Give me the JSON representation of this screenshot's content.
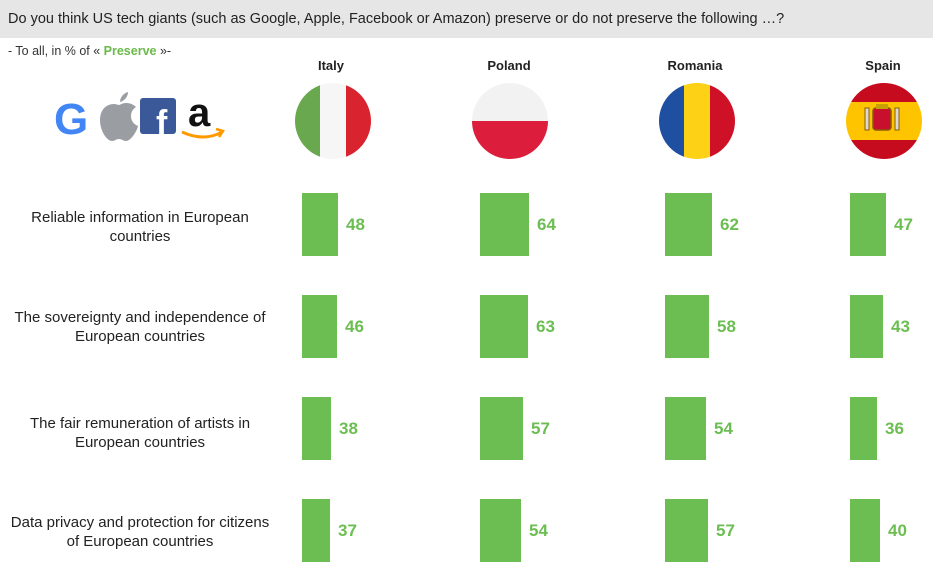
{
  "title": "Do you think US tech giants (such as Google, Apple, Facebook or Amazon) preserve or do not preserve the following …?",
  "subtitle": {
    "prefix": "- To all, in % of « ",
    "highlight": "Preserve",
    "suffix": " »-"
  },
  "logos": {
    "google_letter": "G",
    "facebook_letter": "f",
    "amazon_letter": "a"
  },
  "colors": {
    "bar": "#6cbe52",
    "header_bg": "#e6e6e6"
  },
  "icons": [
    "google-logo-icon",
    "apple-logo-icon",
    "facebook-logo-icon",
    "amazon-logo-icon",
    "flag-italy-icon",
    "flag-poland-icon",
    "flag-romania-icon",
    "flag-spain-icon"
  ],
  "chart_data": {
    "type": "bar",
    "orientation": "horizontal",
    "title": "Do you think US tech giants (such as Google, Apple, Facebook or Amazon) preserve or do not preserve the following …?",
    "unit": "% of « Preserve »",
    "xlim": [
      0,
      100
    ],
    "categories": [
      "Reliable information in European countries",
      "The sovereignty and independence of European countries",
      "The fair remuneration of artists in European countries",
      "Data privacy and protection for citizens of European countries"
    ],
    "series": [
      {
        "name": "Italy",
        "values": [
          48,
          46,
          38,
          37
        ]
      },
      {
        "name": "Poland",
        "values": [
          64,
          63,
          57,
          54
        ]
      },
      {
        "name": "Romania",
        "values": [
          62,
          58,
          54,
          57
        ]
      },
      {
        "name": "Spain",
        "values": [
          47,
          43,
          36,
          40
        ]
      }
    ]
  }
}
